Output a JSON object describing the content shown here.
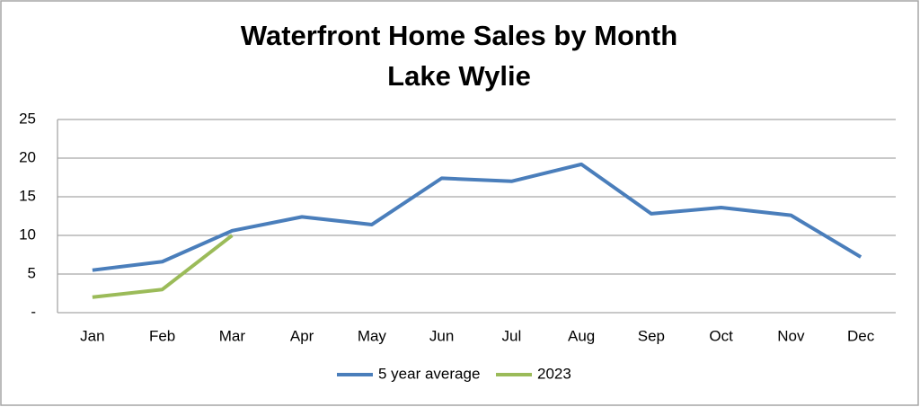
{
  "chart_data": {
    "type": "line",
    "title": [
      "Waterfront Home Sales by Month",
      "Lake Wylie"
    ],
    "categories": [
      "Jan",
      "Feb",
      "Mar",
      "Apr",
      "May",
      "Jun",
      "Jul",
      "Aug",
      "Sep",
      "Oct",
      "Nov",
      "Dec"
    ],
    "series": [
      {
        "name": "5 year average",
        "color": "#4a7ebb",
        "values": [
          5.5,
          6.6,
          10.6,
          12.4,
          11.4,
          17.4,
          17.0,
          19.2,
          12.8,
          13.6,
          12.6,
          7.2
        ]
      },
      {
        "name": "2023",
        "color": "#9bbb59",
        "values": [
          2.0,
          3.0,
          10.0,
          null,
          null,
          null,
          null,
          null,
          null,
          null,
          null,
          null
        ]
      }
    ],
    "ylim": [
      0,
      25
    ],
    "yticks": [
      {
        "value": 0,
        "label": "-"
      },
      5,
      10,
      15,
      20,
      25
    ],
    "grid": true,
    "legend": "bottom"
  }
}
